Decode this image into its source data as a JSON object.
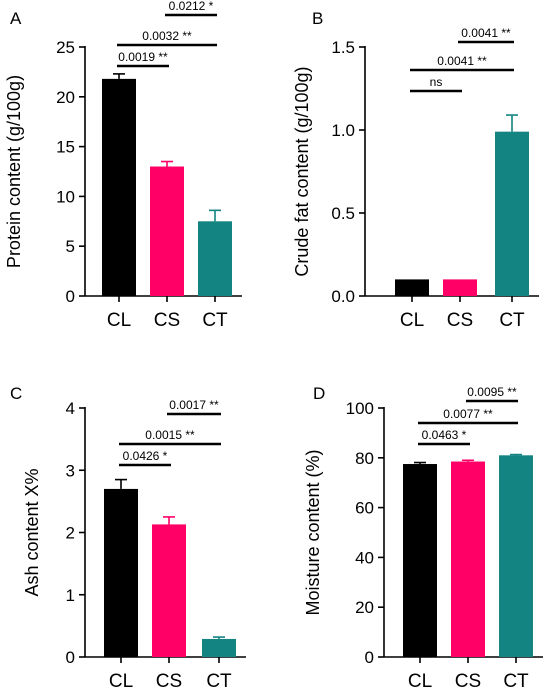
{
  "colors": {
    "CL": "#000000",
    "CS": "#ff0066",
    "CT": "#138481",
    "axis": "#000000"
  },
  "chart_data": [
    {
      "panel": "A",
      "type": "bar",
      "ylabel": "Protein content (g/100g)",
      "categories": [
        "CL",
        "CS",
        "CT"
      ],
      "values": [
        21.8,
        13.0,
        7.5
      ],
      "errors": [
        0.5,
        0.5,
        1.1
      ],
      "ylim": [
        0,
        25
      ],
      "yticks": [
        0,
        5,
        10,
        15,
        20,
        25
      ],
      "comparisons": [
        {
          "from": "CL",
          "to": "CS",
          "label": "0.0019 **"
        },
        {
          "from": "CL",
          "to": "CT",
          "label": "0.0032 **"
        },
        {
          "from": "CS",
          "to": "CT",
          "label": "0.0212 *"
        }
      ]
    },
    {
      "panel": "B",
      "type": "bar",
      "ylabel": "Crude fat  content (g/100g)",
      "categories": [
        "CL",
        "CS",
        "CT"
      ],
      "values": [
        0.1,
        0.1,
        0.99
      ],
      "errors": [
        0.0,
        0.0,
        0.1
      ],
      "ylim": [
        0,
        1.5
      ],
      "yticks": [
        0.0,
        0.5,
        1.0,
        1.5
      ],
      "comparisons": [
        {
          "from": "CL",
          "to": "CS",
          "label": "ns"
        },
        {
          "from": "CL",
          "to": "CT",
          "label": "0.0041 **"
        },
        {
          "from": "CS",
          "to": "CT",
          "label": "0.0041 **"
        }
      ]
    },
    {
      "panel": "C",
      "type": "bar",
      "ylabel": "Ash content X%",
      "categories": [
        "CL",
        "CS",
        "CT"
      ],
      "values": [
        2.7,
        2.13,
        0.29
      ],
      "errors": [
        0.15,
        0.12,
        0.03
      ],
      "ylim": [
        0,
        4
      ],
      "yticks": [
        0,
        1,
        2,
        3,
        4
      ],
      "comparisons": [
        {
          "from": "CL",
          "to": "CS",
          "label": "0.0426 *"
        },
        {
          "from": "CL",
          "to": "CT",
          "label": "0.0015 **"
        },
        {
          "from": "CS",
          "to": "CT",
          "label": "0.0017 **"
        }
      ]
    },
    {
      "panel": "D",
      "type": "bar",
      "ylabel": "Moisture content (%)",
      "categories": [
        "CL",
        "CS",
        "CT"
      ],
      "values": [
        77.5,
        78.5,
        81.0
      ],
      "errors": [
        0.6,
        0.5,
        0.3
      ],
      "ylim": [
        0,
        100
      ],
      "yticks": [
        0,
        20,
        40,
        60,
        80,
        100
      ],
      "comparisons": [
        {
          "from": "CL",
          "to": "CS",
          "label": "0.0463 *"
        },
        {
          "from": "CL",
          "to": "CT",
          "label": "0.0077 **"
        },
        {
          "from": "CS",
          "to": "CT",
          "label": "0.0095 **"
        }
      ]
    }
  ]
}
